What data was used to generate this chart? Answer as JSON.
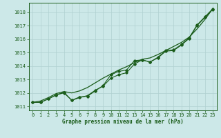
{
  "xlabel": "Graphe pression niveau de la mer (hPa)",
  "ylim": [
    1010.7,
    1018.7
  ],
  "xlim": [
    -0.5,
    23.5
  ],
  "yticks": [
    1011,
    1012,
    1013,
    1014,
    1015,
    1016,
    1017,
    1018
  ],
  "xticks": [
    0,
    1,
    2,
    3,
    4,
    5,
    6,
    7,
    8,
    9,
    10,
    11,
    12,
    13,
    14,
    15,
    16,
    17,
    18,
    19,
    20,
    21,
    22,
    23
  ],
  "bg_color": "#cce8e8",
  "grid_color": "#b0d0d0",
  "line_color": "#1a5c1a",
  "line1_y": [
    1011.3,
    1011.3,
    1011.55,
    1011.85,
    1012.0,
    1011.45,
    1011.65,
    1011.8,
    1012.2,
    1012.5,
    1013.1,
    1013.35,
    1013.5,
    1014.15,
    1014.45,
    1014.3,
    1014.6,
    1015.1,
    1015.15,
    1015.55,
    1016.05,
    1017.0,
    1017.6,
    1018.2
  ],
  "line2_y": [
    1011.3,
    1011.3,
    1011.55,
    1011.85,
    1012.05,
    1011.45,
    1011.7,
    1011.75,
    1012.15,
    1012.55,
    1013.35,
    1013.6,
    1013.7,
    1014.4,
    1014.45,
    1014.3,
    1014.65,
    1015.15,
    1015.2,
    1015.6,
    1016.1,
    1017.05,
    1017.65,
    1018.25
  ],
  "smooth_y": [
    1011.3,
    1011.4,
    1011.65,
    1011.95,
    1012.1,
    1012.0,
    1012.15,
    1012.4,
    1012.75,
    1013.1,
    1013.4,
    1013.7,
    1013.95,
    1014.25,
    1014.5,
    1014.6,
    1014.85,
    1015.15,
    1015.45,
    1015.75,
    1016.15,
    1016.75,
    1017.45,
    1018.25
  ]
}
